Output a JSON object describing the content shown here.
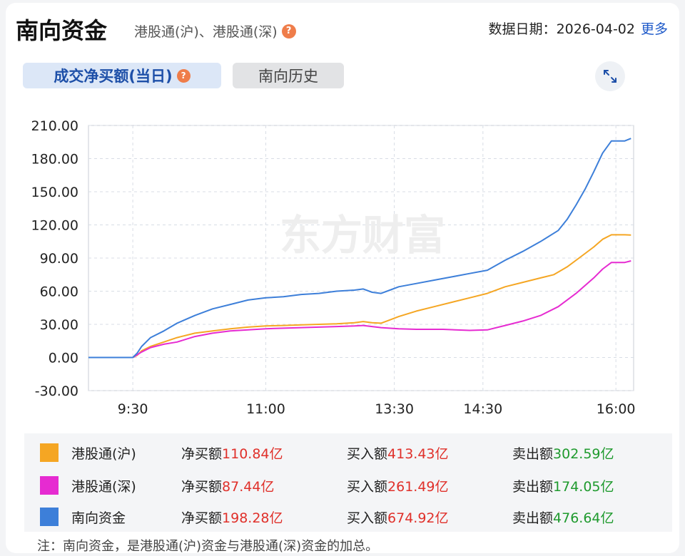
{
  "header": {
    "title": "南向资金",
    "subtitle": "港股通(沪)、港股通(深)",
    "date_label": "数据日期：",
    "date": "2026-04-02",
    "more": "更多"
  },
  "tabs": [
    {
      "label": "成交净买额(当日)",
      "active": true
    },
    {
      "label": "南向历史",
      "active": false
    }
  ],
  "colors": {
    "hu": "#f5a623",
    "shen": "#e62bd1",
    "south": "#3d7fd9",
    "red": "#e0302a",
    "green": "#1f9a2e"
  },
  "chart_data": {
    "type": "line",
    "ylim": [
      -30,
      210
    ],
    "yticks": [
      "210.00",
      "180.00",
      "150.00",
      "120.00",
      "90.00",
      "60.00",
      "30.00",
      "0.00",
      "-30.00"
    ],
    "ytick_values": [
      210,
      180,
      150,
      120,
      90,
      60,
      30,
      0,
      -30
    ],
    "xticks": [
      {
        "label": "9:30",
        "t": 3.0
      },
      {
        "label": "11:00",
        "t": 4.5
      },
      {
        "label": "13:30",
        "t": 5.95
      },
      {
        "label": "14:30",
        "t": 6.95
      },
      {
        "label": "16:00",
        "t": 8.45
      }
    ],
    "xlim": [
      2.5,
      8.65
    ],
    "watermark": "东方财富",
    "series": [
      {
        "name": "港股通(沪)",
        "key": "hu",
        "points": [
          [
            2.5,
            0
          ],
          [
            3.0,
            0
          ],
          [
            3.05,
            2
          ],
          [
            3.1,
            6
          ],
          [
            3.2,
            10
          ],
          [
            3.35,
            14
          ],
          [
            3.5,
            18
          ],
          [
            3.7,
            22
          ],
          [
            3.9,
            24
          ],
          [
            4.1,
            26
          ],
          [
            4.3,
            27.5
          ],
          [
            4.5,
            28.5
          ],
          [
            4.7,
            29
          ],
          [
            4.9,
            29.5
          ],
          [
            5.1,
            30
          ],
          [
            5.3,
            30.5
          ],
          [
            5.5,
            31.5
          ],
          [
            5.6,
            32.5
          ],
          [
            5.7,
            31.5
          ],
          [
            5.8,
            31
          ],
          [
            5.9,
            34
          ],
          [
            6.0,
            37
          ],
          [
            6.2,
            42
          ],
          [
            6.4,
            46
          ],
          [
            6.6,
            50
          ],
          [
            6.8,
            54
          ],
          [
            7.0,
            58
          ],
          [
            7.2,
            64
          ],
          [
            7.4,
            68
          ],
          [
            7.6,
            72
          ],
          [
            7.75,
            75
          ],
          [
            7.9,
            82
          ],
          [
            8.05,
            91
          ],
          [
            8.2,
            100
          ],
          [
            8.3,
            107
          ],
          [
            8.4,
            111
          ],
          [
            8.55,
            111
          ],
          [
            8.62,
            110.84
          ]
        ]
      },
      {
        "name": "港股通(深)",
        "key": "shen",
        "points": [
          [
            2.5,
            0
          ],
          [
            3.0,
            0
          ],
          [
            3.1,
            5
          ],
          [
            3.2,
            9
          ],
          [
            3.35,
            12
          ],
          [
            3.5,
            14
          ],
          [
            3.7,
            19
          ],
          [
            3.9,
            22
          ],
          [
            4.1,
            24
          ],
          [
            4.3,
            25
          ],
          [
            4.5,
            26
          ],
          [
            4.7,
            26.5
          ],
          [
            4.9,
            27
          ],
          [
            5.1,
            27.5
          ],
          [
            5.3,
            28
          ],
          [
            5.5,
            28.5
          ],
          [
            5.6,
            29
          ],
          [
            5.7,
            28
          ],
          [
            5.8,
            27
          ],
          [
            6.0,
            26
          ],
          [
            6.2,
            25.5
          ],
          [
            6.5,
            25.5
          ],
          [
            6.8,
            24.5
          ],
          [
            7.0,
            25
          ],
          [
            7.2,
            29
          ],
          [
            7.4,
            33
          ],
          [
            7.6,
            38
          ],
          [
            7.8,
            46
          ],
          [
            8.0,
            58
          ],
          [
            8.2,
            72
          ],
          [
            8.3,
            80
          ],
          [
            8.4,
            86
          ],
          [
            8.55,
            86
          ],
          [
            8.62,
            87.44
          ]
        ]
      },
      {
        "name": "南向资金",
        "key": "south",
        "points": [
          [
            2.5,
            0
          ],
          [
            3.0,
            0
          ],
          [
            3.05,
            4
          ],
          [
            3.1,
            10
          ],
          [
            3.2,
            18
          ],
          [
            3.35,
            24
          ],
          [
            3.5,
            31
          ],
          [
            3.7,
            38
          ],
          [
            3.9,
            44
          ],
          [
            4.1,
            48
          ],
          [
            4.3,
            52
          ],
          [
            4.5,
            54
          ],
          [
            4.7,
            55
          ],
          [
            4.9,
            57
          ],
          [
            5.1,
            58
          ],
          [
            5.3,
            60
          ],
          [
            5.5,
            61
          ],
          [
            5.6,
            62
          ],
          [
            5.7,
            59
          ],
          [
            5.8,
            58
          ],
          [
            5.9,
            61
          ],
          [
            6.0,
            64
          ],
          [
            6.2,
            67
          ],
          [
            6.4,
            70
          ],
          [
            6.6,
            73
          ],
          [
            6.8,
            76
          ],
          [
            7.0,
            79
          ],
          [
            7.2,
            88
          ],
          [
            7.4,
            96
          ],
          [
            7.6,
            105
          ],
          [
            7.8,
            115
          ],
          [
            7.9,
            125
          ],
          [
            8.0,
            138
          ],
          [
            8.1,
            152
          ],
          [
            8.2,
            168
          ],
          [
            8.3,
            185
          ],
          [
            8.4,
            196
          ],
          [
            8.55,
            196
          ],
          [
            8.62,
            198.28
          ]
        ]
      }
    ]
  },
  "legend": [
    {
      "name": "港股通(沪)",
      "key": "hu",
      "net_label": "净买额",
      "net": "110.84亿",
      "buy_label": "买入额",
      "buy": "413.43亿",
      "sell_label": "卖出额",
      "sell": "302.59亿"
    },
    {
      "name": "港股通(深)",
      "key": "shen",
      "net_label": "净买额",
      "net": "87.44亿",
      "buy_label": "买入额",
      "buy": "261.49亿",
      "sell_label": "卖出额",
      "sell": "174.05亿"
    },
    {
      "name": "南向资金",
      "key": "south",
      "net_label": "净买额",
      "net": "198.28亿",
      "buy_label": "买入额",
      "buy": "674.92亿",
      "sell_label": "卖出额",
      "sell": "476.64亿"
    }
  ],
  "note": "注：南向资金，是港股通(沪)资金与港股通(深)资金的加总。"
}
